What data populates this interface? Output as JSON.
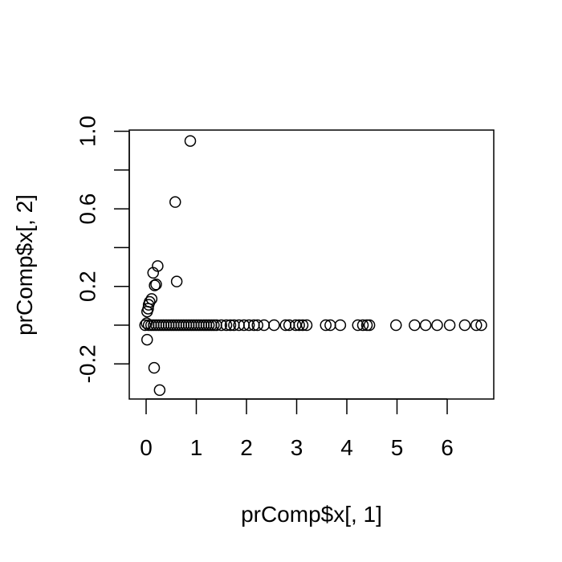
{
  "chart_data": {
    "type": "scatter",
    "title": "",
    "xlabel": "prComp$x[, 1]",
    "ylabel": "prComp$x[, 2]",
    "xlim": [
      -0.3,
      6.9
    ],
    "ylim": [
      -0.35,
      1.02
    ],
    "xticks": [
      0,
      1,
      2,
      3,
      4,
      5,
      6
    ],
    "yticks": [
      -0.2,
      0.0,
      0.2,
      0.4,
      0.6,
      0.8,
      1.0
    ],
    "ytick_labels": [
      "-0.2",
      "",
      "0.2",
      "",
      "0.6",
      "",
      "1.0"
    ],
    "grid": false,
    "marker": "open-circle",
    "series": [
      {
        "x": [
          0.88,
          0.58,
          0.23,
          0.61,
          0.2,
          0.17,
          0.14,
          0.11,
          0.07,
          0.05,
          0.04,
          0.02,
          0.01,
          -0.02,
          0.02,
          0.16,
          0.27,
          0.05,
          0.1,
          0.15,
          0.2,
          0.25,
          0.3,
          0.35,
          0.4,
          0.45,
          0.5,
          0.55,
          0.6,
          0.65,
          0.7,
          0.75,
          0.8,
          0.85,
          0.9,
          0.95,
          1.0,
          1.05,
          1.1,
          1.15,
          1.2,
          1.25,
          1.3,
          1.35,
          1.4,
          1.5,
          1.6,
          1.68,
          1.75,
          1.85,
          1.95,
          2.05,
          2.15,
          2.22,
          2.35,
          2.55,
          2.78,
          2.85,
          2.98,
          3.05,
          3.12,
          3.2,
          3.58,
          3.67,
          3.87,
          4.22,
          4.32,
          4.4,
          4.45,
          4.98,
          5.35,
          5.57,
          5.8,
          6.05,
          6.35,
          6.58,
          6.68
        ],
        "y": [
          0.95,
          0.635,
          0.305,
          0.225,
          0.21,
          0.205,
          0.27,
          0.135,
          0.12,
          0.105,
          0.085,
          0.07,
          0.01,
          0.0,
          -0.075,
          -0.22,
          -0.335,
          0.0,
          0.0,
          0.0,
          0.0,
          0.0,
          0.0,
          0.0,
          0.0,
          0.0,
          0.0,
          0.0,
          0.0,
          0.0,
          0.0,
          0.0,
          0.0,
          0.0,
          0.0,
          0.0,
          0.0,
          0.0,
          0.0,
          0.0,
          0.0,
          0.0,
          0.0,
          0.0,
          0.0,
          0.0,
          0.0,
          0.0,
          0.0,
          0.0,
          0.0,
          0.0,
          0.0,
          0.0,
          0.0,
          0.0,
          0.0,
          0.0,
          0.0,
          0.0,
          0.0,
          0.0,
          0.0,
          0.0,
          0.0,
          0.0,
          0.0,
          0.0,
          0.0,
          0.0,
          0.0,
          0.0,
          0.0,
          0.0,
          0.0,
          0.0,
          0.0
        ]
      }
    ]
  }
}
